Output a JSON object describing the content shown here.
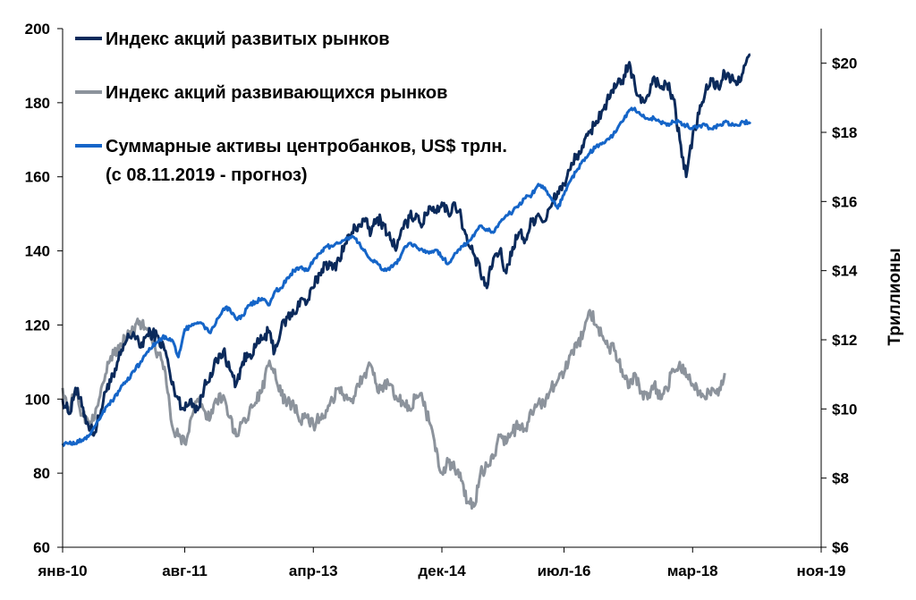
{
  "chart_data": {
    "type": "line",
    "x_tick_labels": [
      "янв-10",
      "авг-11",
      "апр-13",
      "дек-14",
      "июл-16",
      "мар-18",
      "ноя-19"
    ],
    "x_tick_months": [
      0,
      19,
      39,
      59,
      78,
      98,
      118
    ],
    "x_range_months": [
      0,
      118
    ],
    "y_left": {
      "ylim": [
        60,
        200
      ],
      "ticks": [
        60,
        80,
        100,
        120,
        140,
        160,
        180,
        200
      ]
    },
    "y_right": {
      "ylim": [
        6,
        21
      ],
      "ticks": [
        "$6",
        "$8",
        "$10",
        "$12",
        "$14",
        "$16",
        "$18",
        "$20"
      ],
      "label": "Триллионы"
    },
    "series": [
      {
        "name": "Индекс акций развитых рынков",
        "axis": "left",
        "color": "#0b2a5b",
        "points": [
          [
            0,
            100
          ],
          [
            1,
            96
          ],
          [
            2,
            103
          ],
          [
            3,
            98
          ],
          [
            4,
            93
          ],
          [
            5,
            91
          ],
          [
            6,
            97
          ],
          [
            7,
            104
          ],
          [
            8,
            106
          ],
          [
            9,
            112
          ],
          [
            10,
            116
          ],
          [
            11,
            118
          ],
          [
            12,
            114
          ],
          [
            13,
            117
          ],
          [
            14,
            118
          ],
          [
            15,
            116
          ],
          [
            16,
            113
          ],
          [
            17,
            104
          ],
          [
            18,
            100
          ],
          [
            19,
            97
          ],
          [
            20,
            100
          ],
          [
            21,
            97
          ],
          [
            22,
            103
          ],
          [
            23,
            107
          ],
          [
            24,
            110
          ],
          [
            25,
            113
          ],
          [
            26,
            108
          ],
          [
            27,
            104
          ],
          [
            28,
            110
          ],
          [
            29,
            112
          ],
          [
            30,
            114
          ],
          [
            31,
            116
          ],
          [
            32,
            118
          ],
          [
            33,
            113
          ],
          [
            34,
            119
          ],
          [
            35,
            122
          ],
          [
            36,
            123
          ],
          [
            37,
            127
          ],
          [
            38,
            126
          ],
          [
            39,
            130
          ],
          [
            40,
            134
          ],
          [
            41,
            137
          ],
          [
            42,
            135
          ],
          [
            43,
            138
          ],
          [
            44,
            142
          ],
          [
            45,
            145
          ],
          [
            46,
            147
          ],
          [
            47,
            148
          ],
          [
            48,
            145
          ],
          [
            49,
            149
          ],
          [
            50,
            147
          ],
          [
            51,
            143
          ],
          [
            52,
            141
          ],
          [
            53,
            146
          ],
          [
            54,
            149
          ],
          [
            55,
            150
          ],
          [
            56,
            147
          ],
          [
            57,
            152
          ],
          [
            58,
            151
          ],
          [
            59,
            153
          ],
          [
            60,
            150
          ],
          [
            61,
            153
          ],
          [
            62,
            149
          ],
          [
            63,
            142
          ],
          [
            64,
            139
          ],
          [
            65,
            134
          ],
          [
            66,
            130
          ],
          [
            67,
            138
          ],
          [
            68,
            140
          ],
          [
            69,
            134
          ],
          [
            70,
            141
          ],
          [
            71,
            145
          ],
          [
            72,
            143
          ],
          [
            73,
            148
          ],
          [
            74,
            150
          ],
          [
            75,
            148
          ],
          [
            76,
            152
          ],
          [
            77,
            156
          ],
          [
            78,
            158
          ],
          [
            79,
            162
          ],
          [
            80,
            166
          ],
          [
            81,
            168
          ],
          [
            82,
            172
          ],
          [
            83,
            175
          ],
          [
            84,
            178
          ],
          [
            85,
            181
          ],
          [
            86,
            184
          ],
          [
            87,
            186
          ],
          [
            88,
            190
          ],
          [
            89,
            185
          ],
          [
            90,
            180
          ],
          [
            91,
            182
          ],
          [
            92,
            187
          ],
          [
            93,
            184
          ],
          [
            94,
            185
          ],
          [
            95,
            181
          ],
          [
            96,
            170
          ],
          [
            97,
            160
          ],
          [
            98,
            171
          ],
          [
            99,
            177
          ],
          [
            100,
            183
          ],
          [
            101,
            186
          ],
          [
            102,
            184
          ],
          [
            103,
            188
          ],
          [
            104,
            186
          ],
          [
            105,
            185
          ],
          [
            106,
            190
          ],
          [
            107,
            193
          ]
        ]
      },
      {
        "name": "Индекс акций развивающихся рынков",
        "axis": "left",
        "color": "#8c939c",
        "points": [
          [
            0,
            103
          ],
          [
            1,
            97
          ],
          [
            2,
            102
          ],
          [
            3,
            96
          ],
          [
            4,
            94
          ],
          [
            5,
            95
          ],
          [
            6,
            103
          ],
          [
            7,
            110
          ],
          [
            8,
            112
          ],
          [
            9,
            115
          ],
          [
            10,
            117
          ],
          [
            11,
            118
          ],
          [
            12,
            121
          ],
          [
            13,
            119
          ],
          [
            14,
            115
          ],
          [
            15,
            112
          ],
          [
            16,
            107
          ],
          [
            17,
            93
          ],
          [
            18,
            90
          ],
          [
            19,
            88
          ],
          [
            20,
            95
          ],
          [
            21,
            100
          ],
          [
            22,
            97
          ],
          [
            23,
            95
          ],
          [
            24,
            99
          ],
          [
            25,
            101
          ],
          [
            26,
            95
          ],
          [
            27,
            90
          ],
          [
            28,
            94
          ],
          [
            29,
            96
          ],
          [
            30,
            99
          ],
          [
            31,
            102
          ],
          [
            32,
            109
          ],
          [
            33,
            108
          ],
          [
            34,
            101
          ],
          [
            35,
            99
          ],
          [
            36,
            98
          ],
          [
            37,
            94
          ],
          [
            38,
            95
          ],
          [
            39,
            93
          ],
          [
            40,
            95
          ],
          [
            41,
            97
          ],
          [
            42,
            100
          ],
          [
            43,
            103
          ],
          [
            44,
            101
          ],
          [
            45,
            100
          ],
          [
            46,
            104
          ],
          [
            47,
            107
          ],
          [
            48,
            109
          ],
          [
            49,
            102
          ],
          [
            50,
            104
          ],
          [
            51,
            104
          ],
          [
            52,
            100
          ],
          [
            53,
            99
          ],
          [
            54,
            97
          ],
          [
            55,
            101
          ],
          [
            56,
            100
          ],
          [
            57,
            94
          ],
          [
            58,
            86
          ],
          [
            59,
            80
          ],
          [
            60,
            83
          ],
          [
            61,
            81
          ],
          [
            62,
            78
          ],
          [
            63,
            72
          ],
          [
            64,
            71
          ],
          [
            65,
            80
          ],
          [
            66,
            82
          ],
          [
            67,
            84
          ],
          [
            68,
            90
          ],
          [
            69,
            88
          ],
          [
            70,
            91
          ],
          [
            71,
            93
          ],
          [
            72,
            92
          ],
          [
            73,
            96
          ],
          [
            74,
            99
          ],
          [
            75,
            98
          ],
          [
            76,
            103
          ],
          [
            77,
            105
          ],
          [
            78,
            107
          ],
          [
            79,
            112
          ],
          [
            80,
            114
          ],
          [
            81,
            118
          ],
          [
            82,
            124
          ],
          [
            83,
            120
          ],
          [
            84,
            117
          ],
          [
            85,
            114
          ],
          [
            86,
            113
          ],
          [
            87,
            108
          ],
          [
            88,
            103
          ],
          [
            89,
            107
          ],
          [
            90,
            102
          ],
          [
            91,
            100
          ],
          [
            92,
            104
          ],
          [
            93,
            100
          ],
          [
            94,
            103
          ],
          [
            95,
            108
          ],
          [
            96,
            110
          ],
          [
            97,
            106
          ],
          [
            98,
            104
          ],
          [
            99,
            102
          ],
          [
            100,
            100
          ],
          [
            101,
            103
          ],
          [
            102,
            101
          ],
          [
            103,
            107
          ]
        ]
      },
      {
        "name": "Суммарные активы центробанков, US$ трлн.",
        "name_line2": "(с 08.11.2019 - прогноз)",
        "axis": "right",
        "color": "#1565c8",
        "points": [
          [
            0,
            9.0
          ],
          [
            1,
            9.0
          ],
          [
            2,
            9.0
          ],
          [
            3,
            9.1
          ],
          [
            4,
            9.2
          ],
          [
            5,
            9.5
          ],
          [
            6,
            9.8
          ],
          [
            7,
            10.1
          ],
          [
            8,
            10.3
          ],
          [
            9,
            10.6
          ],
          [
            10,
            10.8
          ],
          [
            11,
            11.1
          ],
          [
            12,
            11.3
          ],
          [
            13,
            11.6
          ],
          [
            14,
            11.8
          ],
          [
            15,
            12.0
          ],
          [
            16,
            12.1
          ],
          [
            17,
            12.0
          ],
          [
            18,
            11.5
          ],
          [
            19,
            12.3
          ],
          [
            20,
            12.4
          ],
          [
            21,
            12.5
          ],
          [
            22,
            12.4
          ],
          [
            23,
            12.2
          ],
          [
            24,
            12.6
          ],
          [
            25,
            12.9
          ],
          [
            26,
            12.9
          ],
          [
            27,
            12.6
          ],
          [
            28,
            12.7
          ],
          [
            29,
            13.0
          ],
          [
            30,
            13.1
          ],
          [
            31,
            13.2
          ],
          [
            32,
            13.0
          ],
          [
            33,
            13.4
          ],
          [
            34,
            13.5
          ],
          [
            35,
            13.8
          ],
          [
            36,
            14.0
          ],
          [
            37,
            14.1
          ],
          [
            38,
            14.0
          ],
          [
            39,
            14.3
          ],
          [
            40,
            14.5
          ],
          [
            41,
            14.7
          ],
          [
            42,
            14.7
          ],
          [
            43,
            14.8
          ],
          [
            44,
            14.9
          ],
          [
            45,
            15.0
          ],
          [
            46,
            14.8
          ],
          [
            47,
            14.6
          ],
          [
            48,
            14.3
          ],
          [
            49,
            14.2
          ],
          [
            50,
            14.0
          ],
          [
            51,
            14.1
          ],
          [
            52,
            14.2
          ],
          [
            53,
            14.6
          ],
          [
            54,
            14.8
          ],
          [
            55,
            14.7
          ],
          [
            56,
            14.6
          ],
          [
            57,
            14.5
          ],
          [
            58,
            14.6
          ],
          [
            59,
            14.4
          ],
          [
            60,
            14.2
          ],
          [
            61,
            14.5
          ],
          [
            62,
            14.7
          ],
          [
            63,
            14.8
          ],
          [
            64,
            15.0
          ],
          [
            65,
            15.3
          ],
          [
            66,
            15.2
          ],
          [
            67,
            15.1
          ],
          [
            68,
            15.4
          ],
          [
            69,
            15.6
          ],
          [
            70,
            15.7
          ],
          [
            71,
            15.9
          ],
          [
            72,
            16.1
          ],
          [
            73,
            16.2
          ],
          [
            74,
            16.5
          ],
          [
            75,
            16.4
          ],
          [
            76,
            16.1
          ],
          [
            77,
            15.8
          ],
          [
            78,
            16.2
          ],
          [
            79,
            16.6
          ],
          [
            80,
            16.9
          ],
          [
            81,
            17.2
          ],
          [
            82,
            17.4
          ],
          [
            83,
            17.6
          ],
          [
            84,
            17.7
          ],
          [
            85,
            17.8
          ],
          [
            86,
            18.0
          ],
          [
            87,
            18.3
          ],
          [
            88,
            18.6
          ],
          [
            89,
            18.7
          ],
          [
            90,
            18.5
          ],
          [
            91,
            18.4
          ],
          [
            92,
            18.4
          ],
          [
            93,
            18.3
          ],
          [
            94,
            18.2
          ],
          [
            95,
            18.3
          ],
          [
            96,
            18.3
          ],
          [
            97,
            18.2
          ],
          [
            98,
            18.1
          ],
          [
            99,
            18.2
          ],
          [
            100,
            18.2
          ],
          [
            101,
            18.1
          ],
          [
            102,
            18.2
          ],
          [
            103,
            18.3
          ],
          [
            104,
            18.2
          ],
          [
            105,
            18.2
          ],
          [
            106,
            18.3
          ],
          [
            107,
            18.3
          ]
        ]
      }
    ],
    "grid": false
  }
}
